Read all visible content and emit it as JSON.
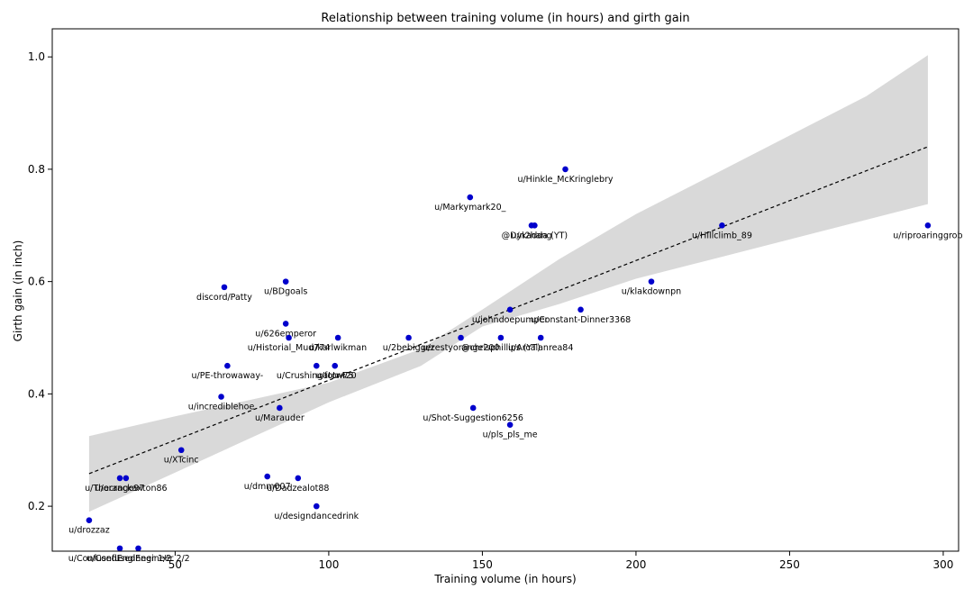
{
  "chart_data": {
    "type": "scatter",
    "title": "Relationship between training volume (in hours) and girth gain",
    "xlabel": "Training volume (in hours)",
    "ylabel": "Girth gain (in inch)",
    "xlim": [
      10,
      305
    ],
    "ylim": [
      0.12,
      1.05
    ],
    "xticks": [
      50,
      100,
      150,
      200,
      250,
      300
    ],
    "yticks": [
      0.2,
      0.4,
      0.6,
      0.8,
      1.0
    ],
    "xtick_labels": [
      "50",
      "100",
      "150",
      "200",
      "250",
      "300"
    ],
    "ytick_labels": [
      "0.2",
      "0.4",
      "0.6",
      "0.8",
      "1.0"
    ],
    "point_color": "#0000cc",
    "trendline": {
      "style": "dashed",
      "color": "#000000",
      "start": [
        22,
        0.258
      ],
      "end": [
        295,
        0.84
      ]
    },
    "confidence_band": {
      "color": "#d9d9d9",
      "upper": [
        [
          22,
          0.325
        ],
        [
          50,
          0.36
        ],
        [
          100,
          0.42
        ],
        [
          130,
          0.48
        ],
        [
          150,
          0.55
        ],
        [
          175,
          0.64
        ],
        [
          200,
          0.72
        ],
        [
          225,
          0.79
        ],
        [
          250,
          0.86
        ],
        [
          275,
          0.93
        ],
        [
          295,
          1.003
        ]
      ],
      "lower": [
        [
          22,
          0.19
        ],
        [
          50,
          0.26
        ],
        [
          100,
          0.385
        ],
        [
          130,
          0.45
        ],
        [
          150,
          0.52
        ],
        [
          175,
          0.56
        ],
        [
          200,
          0.605
        ],
        [
          225,
          0.64
        ],
        [
          250,
          0.675
        ],
        [
          275,
          0.71
        ],
        [
          295,
          0.738
        ]
      ]
    },
    "points": [
      {
        "x": 177,
        "y": 0.8,
        "label": "u/Hinkle_McKringlebry"
      },
      {
        "x": 146,
        "y": 0.75,
        "label": "u/Markymark20_"
      },
      {
        "x": 166,
        "y": 0.7,
        "label": "u/n2hang"
      },
      {
        "x": 167,
        "y": 0.7,
        "label": "@Dykadda (YT)"
      },
      {
        "x": 228,
        "y": 0.7,
        "label": "u/Hillclimb_89"
      },
      {
        "x": 295,
        "y": 0.7,
        "label": "u/riproaringgrob"
      },
      {
        "x": 86,
        "y": 0.6,
        "label": "u/BDgoals"
      },
      {
        "x": 66,
        "y": 0.59,
        "label": "discord/Patty"
      },
      {
        "x": 205,
        "y": 0.6,
        "label": "u/klakdownpn"
      },
      {
        "x": 159,
        "y": 0.55,
        "label": "u/johndoepumper"
      },
      {
        "x": 182,
        "y": 0.55,
        "label": "u/Constant-Dinner3368"
      },
      {
        "x": 86,
        "y": 0.525,
        "label": "u/626emperor"
      },
      {
        "x": 87,
        "y": 0.5,
        "label": "u/Historial_Mud774"
      },
      {
        "x": 103,
        "y": 0.5,
        "label": "u/karlwikman"
      },
      {
        "x": 126,
        "y": 0.5,
        "label": "u/2bebigger"
      },
      {
        "x": 143,
        "y": 0.5,
        "label": "u/zestyorange200"
      },
      {
        "x": 156,
        "y": 0.5,
        "label": "@chrisphillips (YT)"
      },
      {
        "x": 169,
        "y": 0.5,
        "label": "u/Arcalanrea84"
      },
      {
        "x": 67,
        "y": 0.45,
        "label": "u/PE-throwaway-"
      },
      {
        "x": 96,
        "y": 0.45,
        "label": "u/Crushingator420"
      },
      {
        "x": 102,
        "y": 0.45,
        "label": "u/fotw75"
      },
      {
        "x": 65,
        "y": 0.395,
        "label": "u/incrediblehoe"
      },
      {
        "x": 84,
        "y": 0.375,
        "label": "u/Marauder"
      },
      {
        "x": 147,
        "y": 0.375,
        "label": "u/Shot-Suggestion6256"
      },
      {
        "x": 159,
        "y": 0.345,
        "label": "u/pls_pls_me"
      },
      {
        "x": 52,
        "y": 0.3,
        "label": "u/XTcinc"
      },
      {
        "x": 32,
        "y": 0.25,
        "label": "u/orange97"
      },
      {
        "x": 34,
        "y": 0.25,
        "label": "u/Thecrackaxton86"
      },
      {
        "x": 80,
        "y": 0.253,
        "label": "u/dmm007"
      },
      {
        "x": 90,
        "y": 0.25,
        "label": "u/Dadzealot88"
      },
      {
        "x": 96,
        "y": 0.2,
        "label": "u/designdancedrink"
      },
      {
        "x": 22,
        "y": 0.175,
        "label": "u/drozzaz"
      },
      {
        "x": 32,
        "y": 0.125,
        "label": "u/ConfusedEngineer 1/2"
      },
      {
        "x": 38,
        "y": 0.125,
        "label": "u/ConfusedEngineer 2/2"
      }
    ]
  }
}
